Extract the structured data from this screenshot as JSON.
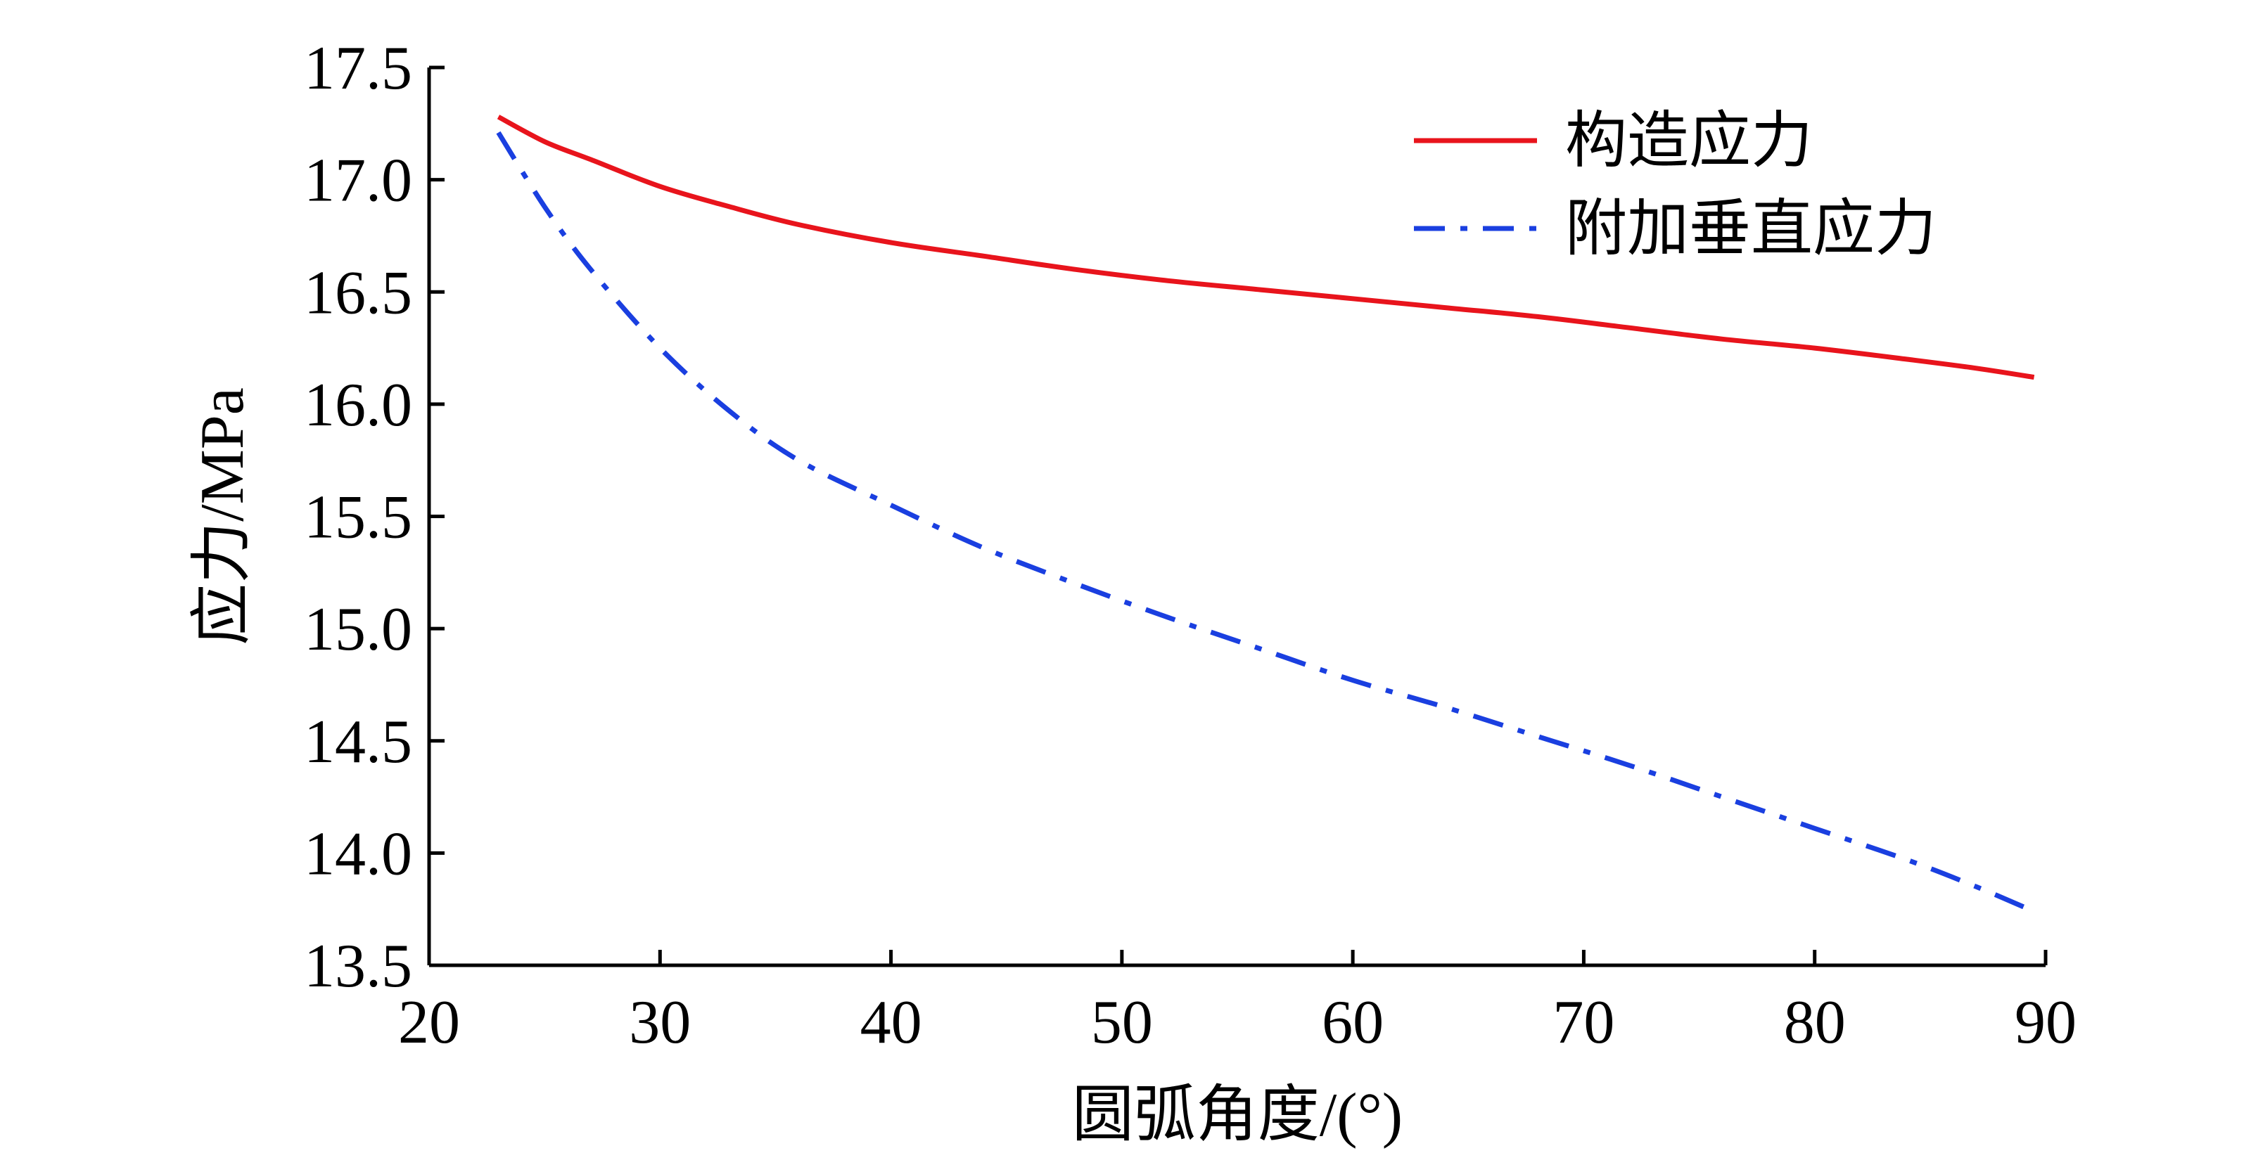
{
  "chart_data": {
    "type": "line",
    "title": "",
    "xlabel": "圆弧角度/(°)",
    "ylabel": "应力/MPa",
    "xlim": [
      20,
      90
    ],
    "ylim": [
      13.5,
      17.5
    ],
    "xticks": [
      "20",
      "30",
      "40",
      "50",
      "60",
      "70",
      "80",
      "90"
    ],
    "yticks": [
      "13.5",
      "14.0",
      "14.5",
      "15.0",
      "15.5",
      "16.0",
      "16.5",
      "17.0",
      "17.5"
    ],
    "grid": false,
    "legend_position": "top-right",
    "x": [
      23,
      25,
      27,
      30,
      33,
      36,
      40,
      44,
      48,
      52,
      56,
      60,
      64,
      68,
      72,
      76,
      80,
      84,
      87,
      89.5
    ],
    "series": [
      {
        "name": "构造应力",
        "color": "#e8141c",
        "line_style": "solid",
        "values": [
          17.28,
          17.17,
          17.09,
          16.97,
          16.88,
          16.8,
          16.72,
          16.66,
          16.6,
          16.55,
          16.51,
          16.47,
          16.43,
          16.39,
          16.34,
          16.29,
          16.25,
          16.2,
          16.16,
          16.12
        ]
      },
      {
        "name": "附加垂直应力",
        "color": "#1a3fe0",
        "line_style": "dash-dot",
        "values": [
          17.21,
          16.88,
          16.6,
          16.25,
          15.97,
          15.75,
          15.55,
          15.36,
          15.2,
          15.05,
          14.91,
          14.77,
          14.65,
          14.52,
          14.39,
          14.25,
          14.11,
          13.97,
          13.85,
          13.74
        ]
      }
    ]
  }
}
